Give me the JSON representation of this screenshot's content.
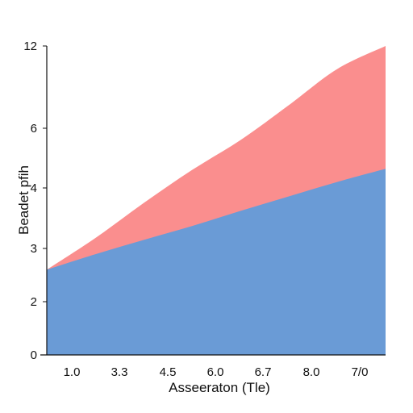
{
  "chart_data": {
    "type": "area",
    "stacked": false,
    "title": "",
    "xlabel": "Asseeraton (Tle)",
    "ylabel": "Beadet pfih",
    "x_tick_labels": [
      "1.0",
      "3.3",
      "4.5",
      "6.0",
      "6.7",
      "8.0",
      "7/0"
    ],
    "y_tick_labels": [
      "0",
      "2",
      "3",
      "4",
      "6",
      "12"
    ],
    "x": [
      0,
      1,
      2,
      3,
      4,
      5,
      6,
      7
    ],
    "xlim": [
      0,
      7
    ],
    "ylim_index": [
      0,
      5
    ],
    "series": [
      {
        "color": "#fa8e8e",
        "values": [
          1.6,
          2.17,
          2.75,
          3.3,
          3.8,
          4.28,
          4.72,
          5.13
        ]
      },
      {
        "color": "#6a9bd6",
        "values": [
          1.6,
          1.89,
          2.14,
          2.37,
          2.62,
          2.86,
          3.1,
          3.32
        ]
      }
    ],
    "grid": false,
    "legend": "none"
  }
}
